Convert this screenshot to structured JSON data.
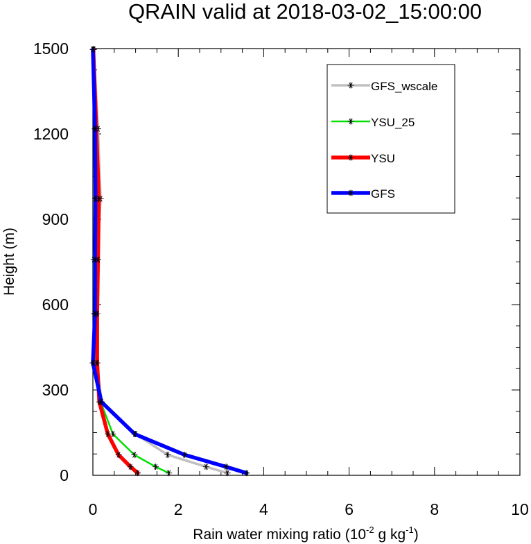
{
  "chart_data": {
    "type": "line",
    "title": "QRAIN valid at 2018-03-02_15:00:00",
    "xlabel": "Rain water mixing ratio (10",
    "xlabel_sup1": "-2",
    "xlabel_mid": " g kg",
    "xlabel_sup2": "-1",
    "xlabel_end": ")",
    "ylabel": "Height (m)",
    "xlim": [
      0,
      10
    ],
    "ylim": [
      0,
      1500
    ],
    "xticks": [
      "0",
      "2",
      "4",
      "6",
      "8",
      "10"
    ],
    "yticks": [
      "0",
      "300",
      "600",
      "900",
      "1200",
      "1500"
    ],
    "legend_position": "top-right",
    "series": [
      {
        "name": "GFS_wscale",
        "color": "#c0c0c0",
        "points": [
          [
            3.15,
            8
          ],
          [
            2.65,
            30
          ],
          [
            1.75,
            72
          ],
          [
            1.0,
            145
          ],
          [
            0.2,
            258
          ],
          [
            0.1,
            395
          ],
          [
            0.05,
            568
          ],
          [
            0.1,
            758
          ],
          [
            0.18,
            972
          ],
          [
            0.12,
            1218
          ],
          [
            0.02,
            1497
          ]
        ]
      },
      {
        "name": "YSU_25",
        "color": "#00e000",
        "points": [
          [
            1.78,
            8
          ],
          [
            1.47,
            30
          ],
          [
            0.97,
            72
          ],
          [
            0.47,
            145
          ],
          [
            0.18,
            258
          ],
          [
            0.07,
            395
          ],
          [
            0.03,
            568
          ],
          [
            0.02,
            758
          ],
          [
            0.07,
            972
          ],
          [
            0.05,
            1218
          ],
          [
            0.01,
            1497
          ]
        ]
      },
      {
        "name": "YSU",
        "color": "#ff0000",
        "points": [
          [
            1.05,
            8
          ],
          [
            0.88,
            30
          ],
          [
            0.6,
            72
          ],
          [
            0.35,
            145
          ],
          [
            0.15,
            258
          ],
          [
            0.1,
            395
          ],
          [
            0.1,
            568
          ],
          [
            0.12,
            758
          ],
          [
            0.14,
            972
          ],
          [
            0.08,
            1218
          ],
          [
            0.01,
            1497
          ]
        ]
      },
      {
        "name": "GFS",
        "color": "#0000ff",
        "points": [
          [
            3.6,
            8
          ],
          [
            3.12,
            30
          ],
          [
            2.15,
            72
          ],
          [
            0.98,
            145
          ],
          [
            0.2,
            258
          ],
          [
            0.0,
            395
          ],
          [
            0.05,
            568
          ],
          [
            0.05,
            758
          ],
          [
            0.06,
            972
          ],
          [
            0.05,
            1218
          ],
          [
            0.0,
            1497
          ]
        ]
      }
    ],
    "grid": false
  }
}
